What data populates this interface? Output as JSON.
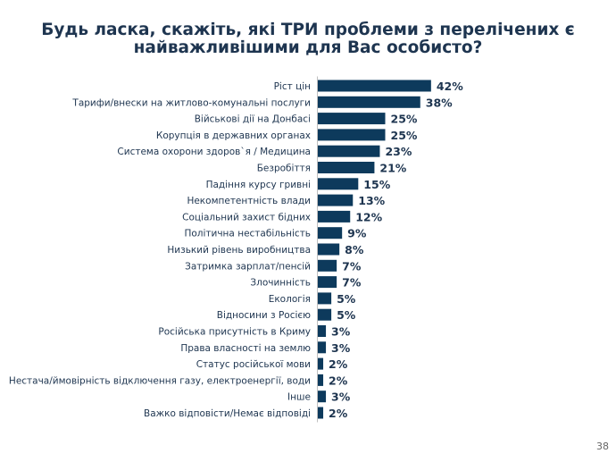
{
  "chart_data": {
    "type": "bar",
    "orientation": "horizontal",
    "title": "Будь ласка, скажіть, які ТРИ проблеми з перелічених є найважливішими для Вас особисто?",
    "title_lines": [
      "Будь ласка, скажіть, які ТРИ проблеми з перелічених є",
      "найважливішими для Вас особисто?"
    ],
    "categories": [
      "Ріст цін",
      "Тарифи/внески на житлово-комунальні послуги",
      "Військові дії на Донбасі",
      "Корупція в державних органах",
      "Система охорони здоров`я / Медицина",
      "Безробіття",
      "Падіння курсу гривні",
      "Некомпетентність влади",
      "Соціальний захист бідних",
      "Політична нестабільність",
      "Низький рівень виробництва",
      "Затримка зарплат/пенсій",
      "Злочинність",
      "Екологія",
      "Відносини з Росією",
      "Російська присутність в Криму",
      "Права власності на землю",
      "Статус російської мови",
      "Нестача/ймовірність відключення газу, електроенергії, води",
      "Інше",
      "Важко відповісти/Немає відповіді"
    ],
    "values": [
      42,
      38,
      25,
      25,
      23,
      21,
      15,
      13,
      12,
      9,
      8,
      7,
      7,
      5,
      5,
      3,
      3,
      2,
      2,
      3,
      2
    ],
    "value_suffix": "%",
    "xlabel": "",
    "ylabel": "",
    "grid": false,
    "legend": "none",
    "bar_color": "#0d3a5c"
  },
  "page_number": "38"
}
